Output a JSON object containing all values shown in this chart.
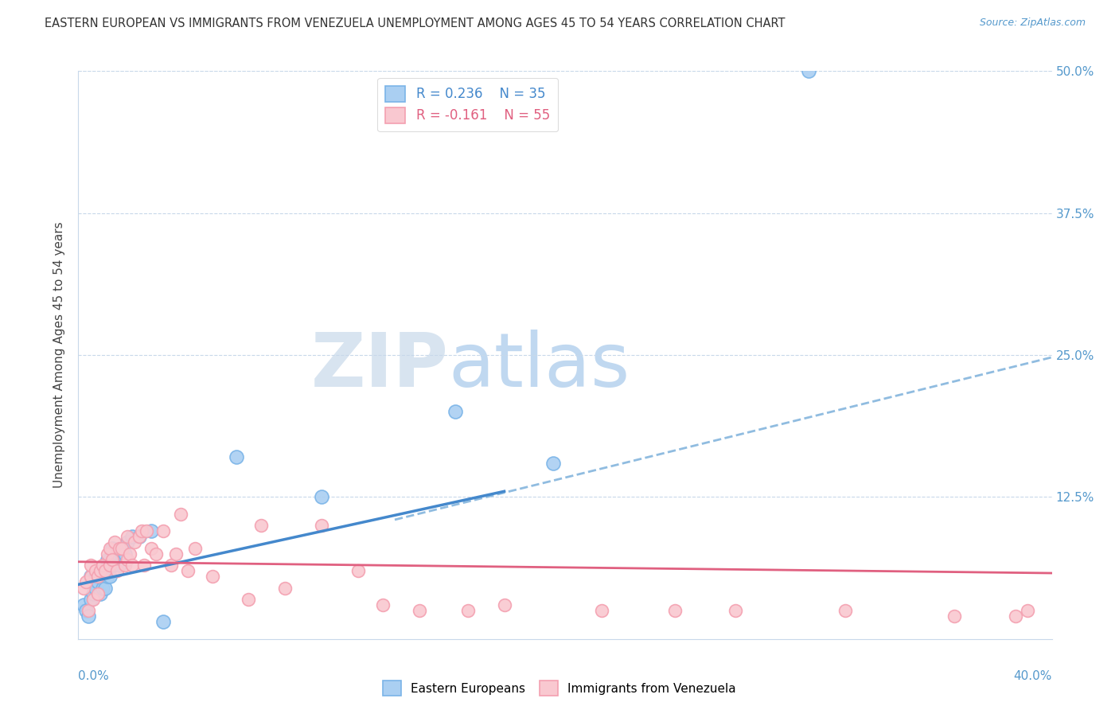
{
  "title": "EASTERN EUROPEAN VS IMMIGRANTS FROM VENEZUELA UNEMPLOYMENT AMONG AGES 45 TO 54 YEARS CORRELATION CHART",
  "source": "Source: ZipAtlas.com",
  "ylabel": "Unemployment Among Ages 45 to 54 years",
  "yticks": [
    0,
    0.125,
    0.25,
    0.375,
    0.5
  ],
  "ytick_labels": [
    "",
    "12.5%",
    "25.0%",
    "37.5%",
    "50.0%"
  ],
  "xlim": [
    0,
    0.4
  ],
  "ylim": [
    0,
    0.5
  ],
  "legend_r1": "R = 0.236",
  "legend_n1": "N = 35",
  "legend_r2": "R = -0.161",
  "legend_n2": "N = 55",
  "blue_color": "#7ab4e8",
  "blue_fill": "#aacff2",
  "pink_color": "#f4a0b0",
  "pink_fill": "#f9c8d0",
  "trend_blue_color": "#4488cc",
  "trend_pink_color": "#e06080",
  "trend_dashed_color": "#90bce0",
  "watermark_zip_color": "#d8e4f0",
  "watermark_atlas_color": "#c0d8f0",
  "blue_scatter_x": [
    0.002,
    0.003,
    0.004,
    0.005,
    0.005,
    0.006,
    0.007,
    0.007,
    0.008,
    0.009,
    0.009,
    0.01,
    0.01,
    0.011,
    0.012,
    0.012,
    0.013,
    0.013,
    0.014,
    0.014,
    0.015,
    0.016,
    0.017,
    0.018,
    0.019,
    0.02,
    0.022,
    0.025,
    0.03,
    0.035,
    0.065,
    0.1,
    0.155,
    0.195,
    0.3
  ],
  "blue_scatter_y": [
    0.03,
    0.025,
    0.02,
    0.035,
    0.055,
    0.04,
    0.045,
    0.055,
    0.05,
    0.04,
    0.055,
    0.045,
    0.06,
    0.045,
    0.055,
    0.07,
    0.055,
    0.07,
    0.065,
    0.08,
    0.07,
    0.075,
    0.065,
    0.075,
    0.075,
    0.085,
    0.09,
    0.09,
    0.095,
    0.015,
    0.16,
    0.125,
    0.2,
    0.155,
    0.5
  ],
  "pink_scatter_x": [
    0.002,
    0.003,
    0.004,
    0.005,
    0.005,
    0.006,
    0.007,
    0.008,
    0.008,
    0.009,
    0.01,
    0.011,
    0.012,
    0.013,
    0.013,
    0.014,
    0.015,
    0.016,
    0.017,
    0.018,
    0.019,
    0.02,
    0.02,
    0.021,
    0.022,
    0.023,
    0.025,
    0.026,
    0.027,
    0.028,
    0.03,
    0.032,
    0.035,
    0.038,
    0.04,
    0.042,
    0.045,
    0.048,
    0.055,
    0.07,
    0.075,
    0.085,
    0.1,
    0.115,
    0.125,
    0.14,
    0.16,
    0.175,
    0.215,
    0.245,
    0.27,
    0.315,
    0.36,
    0.385,
    0.39
  ],
  "pink_scatter_y": [
    0.045,
    0.05,
    0.025,
    0.055,
    0.065,
    0.035,
    0.06,
    0.055,
    0.04,
    0.06,
    0.065,
    0.06,
    0.075,
    0.065,
    0.08,
    0.07,
    0.085,
    0.06,
    0.08,
    0.08,
    0.065,
    0.09,
    0.07,
    0.075,
    0.065,
    0.085,
    0.09,
    0.095,
    0.065,
    0.095,
    0.08,
    0.075,
    0.095,
    0.065,
    0.075,
    0.11,
    0.06,
    0.08,
    0.055,
    0.035,
    0.1,
    0.045,
    0.1,
    0.06,
    0.03,
    0.025,
    0.025,
    0.03,
    0.025,
    0.025,
    0.025,
    0.025,
    0.02,
    0.02,
    0.025
  ],
  "blue_trend_x0": 0.0,
  "blue_trend_y0": 0.048,
  "blue_trend_x1": 0.175,
  "blue_trend_y1": 0.13,
  "dashed_trend_x0": 0.13,
  "dashed_trend_y0": 0.105,
  "dashed_trend_x1": 0.4,
  "dashed_trend_y1": 0.248,
  "pink_trend_x0": 0.0,
  "pink_trend_y0": 0.068,
  "pink_trend_x1": 0.4,
  "pink_trend_y1": 0.058
}
